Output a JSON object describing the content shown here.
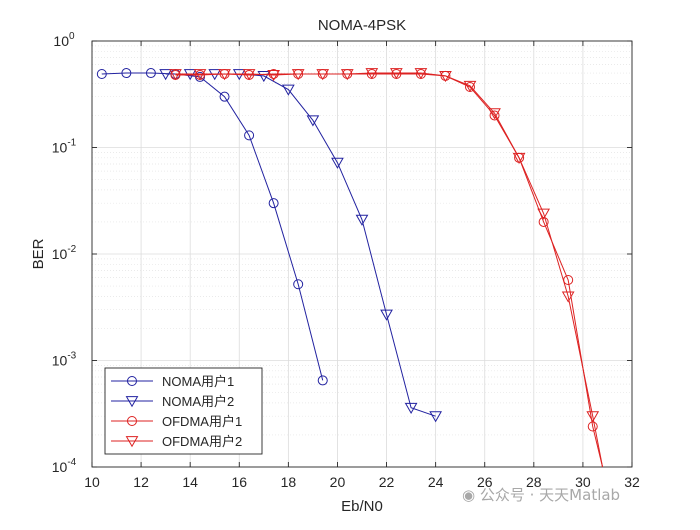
{
  "chart_data": {
    "type": "line",
    "title": "NOMA-4PSK",
    "xlabel": "Eb/N0",
    "ylabel": "BER",
    "xlim": [
      10,
      32
    ],
    "ylim": [
      0.0001,
      1
    ],
    "yscale": "log",
    "grid": true,
    "minor_grid": true,
    "legend_position": "bottom-left",
    "x_ticks": [
      "10",
      "12",
      "14",
      "16",
      "18",
      "20",
      "22",
      "24",
      "26",
      "28",
      "30",
      "32"
    ],
    "y_ticks": [
      {
        "base": "10",
        "exp": "0"
      },
      {
        "base": "10",
        "exp": "-1"
      },
      {
        "base": "10",
        "exp": "-2"
      },
      {
        "base": "10",
        "exp": "-3"
      },
      {
        "base": "10",
        "exp": "-4"
      }
    ],
    "series": [
      {
        "name": "NOMA用户1",
        "color": "#2222a0",
        "marker": "circle",
        "x": [
          10.4,
          11.4,
          12.4,
          13.4,
          14.4,
          15.4,
          16.4,
          17.4,
          18.4,
          19.4
        ],
        "y": [
          0.49,
          0.5,
          0.5,
          0.49,
          0.46,
          0.3,
          0.13,
          0.03,
          0.0052,
          0.00065
        ]
      },
      {
        "name": "NOMA用户2",
        "color": "#2222a0",
        "marker": "triangle-down",
        "x": [
          13.0,
          14.0,
          15.0,
          16.0,
          17.0,
          18.0,
          19.0,
          20.0,
          21.0,
          22.0,
          23.0,
          24.0
        ],
        "y": [
          0.49,
          0.49,
          0.49,
          0.49,
          0.47,
          0.35,
          0.18,
          0.072,
          0.021,
          0.0027,
          0.00036,
          0.0003
        ]
      },
      {
        "name": "OFDMA用户1",
        "color": "#dd2222",
        "marker": "circle",
        "x": [
          13.4,
          14.4,
          15.4,
          16.4,
          17.4,
          18.4,
          19.4,
          20.4,
          21.4,
          22.4,
          23.4,
          24.4,
          25.4,
          26.4,
          27.4,
          28.4,
          29.4,
          30.4,
          30.8
        ],
        "y": [
          0.48,
          0.48,
          0.49,
          0.48,
          0.49,
          0.49,
          0.49,
          0.49,
          0.49,
          0.49,
          0.49,
          0.47,
          0.37,
          0.2,
          0.08,
          0.02,
          0.0057,
          0.00024,
          0.0001
        ]
      },
      {
        "name": "OFDMA用户2",
        "color": "#dd2222",
        "marker": "triangle-down",
        "x": [
          13.4,
          14.4,
          15.4,
          16.4,
          17.4,
          18.4,
          19.4,
          20.4,
          21.4,
          22.4,
          23.4,
          24.4,
          25.4,
          26.4,
          27.4,
          28.4,
          29.4,
          30.4,
          30.8
        ],
        "y": [
          0.49,
          0.49,
          0.49,
          0.49,
          0.48,
          0.49,
          0.49,
          0.49,
          0.5,
          0.5,
          0.5,
          0.47,
          0.38,
          0.21,
          0.08,
          0.024,
          0.004,
          0.0003,
          0.0001
        ]
      }
    ]
  },
  "watermark": {
    "text": "公众号 · 天天Matlab"
  }
}
